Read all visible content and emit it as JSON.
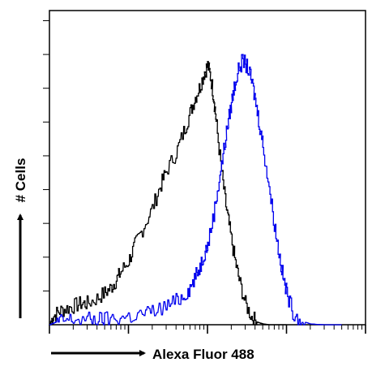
{
  "chart_data": {
    "type": "line",
    "title": "",
    "xlabel": "Alexa Fluor 488",
    "ylabel": "# Cells",
    "x_scale": "log",
    "xlim": [
      1,
      10000
    ],
    "ylim": [
      0,
      1
    ],
    "grid": false,
    "legend": "none",
    "series": [
      {
        "color": "#000000",
        "x": [
          1,
          1.1,
          1.3,
          1.6,
          2,
          2.5,
          3,
          4,
          5,
          6,
          7,
          8,
          10,
          12,
          15,
          20,
          25,
          30,
          40,
          50,
          60,
          70,
          80,
          90,
          100,
          110,
          120,
          130,
          150,
          170,
          190,
          220,
          250,
          300,
          360,
          420,
          500,
          600,
          800,
          1000
        ],
        "y": [
          0.0,
          0.03,
          0.05,
          0.06,
          0.07,
          0.08,
          0.08,
          0.1,
          0.12,
          0.14,
          0.17,
          0.2,
          0.24,
          0.3,
          0.36,
          0.44,
          0.52,
          0.58,
          0.65,
          0.73,
          0.8,
          0.86,
          0.9,
          0.95,
          0.98,
          0.93,
          0.85,
          0.75,
          0.58,
          0.45,
          0.36,
          0.25,
          0.17,
          0.08,
          0.03,
          0.01,
          0.003,
          0.0,
          0.0,
          0.0
        ]
      },
      {
        "color": "#0000ee",
        "x": [
          1,
          1.2,
          1.5,
          2,
          3,
          4,
          5,
          7,
          10,
          15,
          20,
          30,
          40,
          50,
          60,
          70,
          80,
          90,
          100,
          120,
          140,
          160,
          180,
          200,
          220,
          250,
          280,
          320,
          360,
          400,
          450,
          500,
          600,
          700,
          800,
          900,
          1000,
          1200,
          1500,
          2000,
          2500,
          3000,
          4000,
          5000
        ],
        "y": [
          0.0,
          0.01,
          0.015,
          0.02,
          0.02,
          0.02,
          0.02,
          0.025,
          0.03,
          0.04,
          0.05,
          0.07,
          0.09,
          0.11,
          0.14,
          0.18,
          0.22,
          0.27,
          0.3,
          0.42,
          0.55,
          0.66,
          0.76,
          0.84,
          0.91,
          0.97,
          1.0,
          0.97,
          0.92,
          0.85,
          0.76,
          0.68,
          0.52,
          0.38,
          0.27,
          0.18,
          0.12,
          0.05,
          0.015,
          0.003,
          0.001,
          0.0,
          0.0,
          0.0
        ]
      }
    ]
  }
}
